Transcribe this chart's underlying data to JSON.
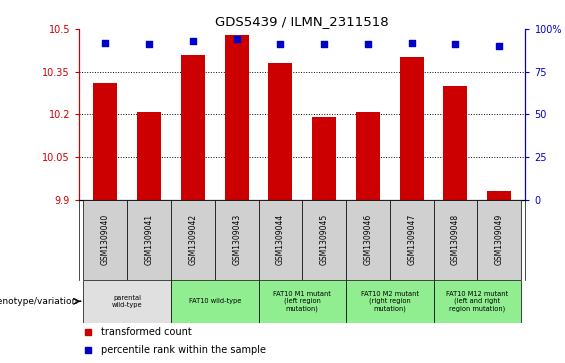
{
  "title": "GDS5439 / ILMN_2311518",
  "samples": [
    "GSM1309040",
    "GSM1309041",
    "GSM1309042",
    "GSM1309043",
    "GSM1309044",
    "GSM1309045",
    "GSM1309046",
    "GSM1309047",
    "GSM1309048",
    "GSM1309049"
  ],
  "transformed_counts": [
    10.31,
    10.21,
    10.41,
    10.48,
    10.38,
    10.19,
    10.21,
    10.4,
    10.3,
    9.93
  ],
  "percentile_ranks": [
    92,
    91,
    93,
    94,
    91,
    91,
    91,
    92,
    91,
    90
  ],
  "ylim_left": [
    9.9,
    10.5
  ],
  "ylim_right": [
    0,
    100
  ],
  "yticks_left": [
    9.9,
    10.05,
    10.2,
    10.35,
    10.5
  ],
  "yticks_right": [
    0,
    25,
    50,
    75,
    100
  ],
  "bar_color": "#cc0000",
  "dot_color": "#0000cc",
  "bar_width": 0.55,
  "gridline_color": "#000000",
  "groups": [
    {
      "label": "parental\nwild-type",
      "start": 0,
      "end": 1,
      "color": "#e0e0e0"
    },
    {
      "label": "FAT10 wild-type",
      "start": 2,
      "end": 3,
      "color": "#90ee90"
    },
    {
      "label": "FAT10 M1 mutant\n(left region\nmutation)",
      "start": 4,
      "end": 5,
      "color": "#90ee90"
    },
    {
      "label": "FAT10 M2 mutant\n(right region\nmutation)",
      "start": 6,
      "end": 7,
      "color": "#90ee90"
    },
    {
      "label": "FAT10 M12 mutant\n(left and right\nregion mutation)",
      "start": 8,
      "end": 9,
      "color": "#90ee90"
    }
  ],
  "bar_left_color": "#cc0000",
  "ylabel_right_color": "#0000cc",
  "legend_items": [
    {
      "color": "#cc0000",
      "label": "transformed count"
    },
    {
      "color": "#0000cc",
      "label": "percentile rank within the sample"
    }
  ],
  "genotype_label": "genotype/variation"
}
